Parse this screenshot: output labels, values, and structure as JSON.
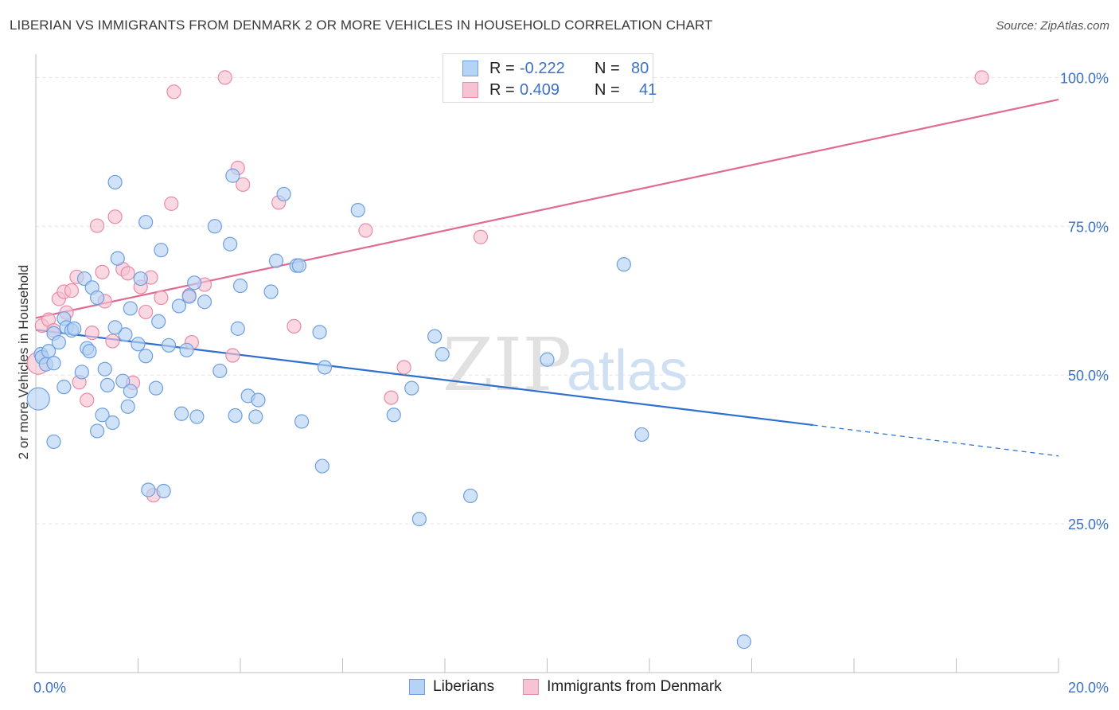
{
  "title": "LIBERIAN VS IMMIGRANTS FROM DENMARK 2 OR MORE VEHICLES IN HOUSEHOLD CORRELATION CHART",
  "source": "Source: ZipAtlas.com",
  "watermark": {
    "zip": "ZIP",
    "atlas": "atlas"
  },
  "legend": {
    "rows": [
      {
        "r_label": "R =",
        "r_value": "-0.222",
        "n_label": "N =",
        "n_value": "80",
        "fill": "#b6d2f4",
        "stroke": "#6e9fe0"
      },
      {
        "r_label": "R =",
        "r_value": "0.409",
        "n_label": "N =",
        "n_value": "41",
        "fill": "#f7c3d3",
        "stroke": "#e98aa8"
      }
    ]
  },
  "bottom_legend": {
    "liberians": "Liberians",
    "denmark": "Immigrants from Denmark"
  },
  "chart_data": {
    "type": "scatter",
    "title": "LIBERIAN VS IMMIGRANTS FROM DENMARK 2 OR MORE VEHICLES IN HOUSEHOLD CORRELATION CHART",
    "xlabel": "",
    "ylabel": "2 or more Vehicles in Household",
    "xlim": [
      0,
      20
    ],
    "ylim": [
      0,
      105
    ],
    "x_ticks": [
      0,
      20
    ],
    "x_tick_labels": [
      "0.0%",
      "20.0%"
    ],
    "y_ticks": [
      25,
      50,
      75,
      100
    ],
    "y_tick_labels": [
      "25.0%",
      "50.0%",
      "75.0%",
      "100.0%"
    ],
    "grid": "horizontal dashed",
    "legend_position": "top-center",
    "series": [
      {
        "name": "Liberians",
        "color": "#6e9fe0",
        "fill": "#b6d2f4",
        "r": -0.222,
        "n": 80,
        "trend": {
          "x0": 0,
          "y0": 57.6,
          "x1": 15.2,
          "y1": 41.6,
          "dash_to_x": 20,
          "dash_to_y": 36.4
        },
        "points": [
          [
            0.05,
            46.0
          ],
          [
            0.1,
            53.5
          ],
          [
            0.12,
            53.0
          ],
          [
            0.2,
            51.8
          ],
          [
            0.25,
            54.0
          ],
          [
            0.35,
            57.0
          ],
          [
            0.35,
            52.0
          ],
          [
            0.45,
            55.5
          ],
          [
            0.55,
            59.5
          ],
          [
            0.6,
            58.0
          ],
          [
            0.7,
            57.5
          ],
          [
            0.75,
            57.8
          ],
          [
            0.55,
            48.0
          ],
          [
            0.35,
            38.8
          ],
          [
            0.9,
            50.5
          ],
          [
            0.95,
            66.2
          ],
          [
            1.0,
            54.5
          ],
          [
            1.05,
            54.0
          ],
          [
            1.1,
            64.7
          ],
          [
            1.2,
            63.0
          ],
          [
            1.2,
            40.6
          ],
          [
            1.3,
            43.3
          ],
          [
            1.35,
            51.0
          ],
          [
            1.4,
            48.3
          ],
          [
            1.5,
            42.0
          ],
          [
            1.55,
            82.4
          ],
          [
            1.6,
            69.6
          ],
          [
            1.7,
            49.0
          ],
          [
            1.75,
            56.8
          ],
          [
            1.8,
            44.7
          ],
          [
            1.85,
            61.2
          ],
          [
            1.85,
            47.3
          ],
          [
            2.0,
            55.2
          ],
          [
            2.05,
            66.2
          ],
          [
            2.15,
            53.2
          ],
          [
            2.15,
            75.7
          ],
          [
            2.2,
            30.7
          ],
          [
            2.35,
            47.8
          ],
          [
            2.4,
            59.0
          ],
          [
            2.45,
            71.0
          ],
          [
            2.5,
            30.5
          ],
          [
            2.6,
            55.0
          ],
          [
            2.8,
            61.6
          ],
          [
            2.85,
            43.5
          ],
          [
            2.95,
            54.2
          ],
          [
            3.0,
            63.2
          ],
          [
            3.1,
            65.5
          ],
          [
            3.15,
            43.0
          ],
          [
            3.3,
            62.3
          ],
          [
            3.5,
            75.0
          ],
          [
            3.6,
            50.7
          ],
          [
            3.8,
            72.0
          ],
          [
            3.9,
            43.2
          ],
          [
            3.95,
            57.8
          ],
          [
            4.0,
            65.0
          ],
          [
            4.15,
            46.5
          ],
          [
            4.3,
            43.0
          ],
          [
            4.35,
            45.8
          ],
          [
            4.6,
            64.0
          ],
          [
            4.7,
            69.2
          ],
          [
            4.85,
            80.4
          ],
          [
            5.1,
            68.4
          ],
          [
            5.15,
            68.4
          ],
          [
            5.2,
            42.2
          ],
          [
            5.55,
            57.2
          ],
          [
            5.6,
            34.7
          ],
          [
            5.65,
            51.3
          ],
          [
            6.3,
            77.7
          ],
          [
            7.0,
            43.3
          ],
          [
            7.35,
            47.8
          ],
          [
            7.5,
            25.8
          ],
          [
            7.8,
            56.5
          ],
          [
            7.95,
            53.5
          ],
          [
            8.5,
            29.7
          ],
          [
            10.0,
            52.6
          ],
          [
            11.5,
            68.6
          ],
          [
            11.85,
            40.0
          ],
          [
            13.85,
            5.2
          ],
          [
            3.85,
            83.5
          ],
          [
            1.55,
            58.0
          ]
        ]
      },
      {
        "name": "Immigrants from Denmark",
        "color": "#e98aa8",
        "fill": "#f7c3d3",
        "r": 0.409,
        "n": 41,
        "trend": {
          "x0": 0,
          "y0": 59.6,
          "x1": 20,
          "y1": 96.3
        },
        "points": [
          [
            0.05,
            52.0
          ],
          [
            0.12,
            58.3
          ],
          [
            0.25,
            59.3
          ],
          [
            0.35,
            57.5
          ],
          [
            0.45,
            62.8
          ],
          [
            0.55,
            64.0
          ],
          [
            0.6,
            60.5
          ],
          [
            0.7,
            64.2
          ],
          [
            0.8,
            66.5
          ],
          [
            0.85,
            48.8
          ],
          [
            1.0,
            45.8
          ],
          [
            1.1,
            57.1
          ],
          [
            1.2,
            75.1
          ],
          [
            1.3,
            67.3
          ],
          [
            1.35,
            62.4
          ],
          [
            1.5,
            55.7
          ],
          [
            1.55,
            76.6
          ],
          [
            1.7,
            67.8
          ],
          [
            1.8,
            67.1
          ],
          [
            1.9,
            48.7
          ],
          [
            2.05,
            64.8
          ],
          [
            2.15,
            60.6
          ],
          [
            2.25,
            66.4
          ],
          [
            2.3,
            29.8
          ],
          [
            2.45,
            63.0
          ],
          [
            2.65,
            78.8
          ],
          [
            2.7,
            97.6
          ],
          [
            3.0,
            63.4
          ],
          [
            3.05,
            55.5
          ],
          [
            3.3,
            65.2
          ],
          [
            3.7,
            100.0
          ],
          [
            3.85,
            53.3
          ],
          [
            3.95,
            84.8
          ],
          [
            4.05,
            82.0
          ],
          [
            4.75,
            79.0
          ],
          [
            5.05,
            58.2
          ],
          [
            6.45,
            74.3
          ],
          [
            6.95,
            46.2
          ],
          [
            7.2,
            51.3
          ],
          [
            8.7,
            73.2
          ],
          [
            18.5,
            100.0
          ]
        ]
      }
    ]
  }
}
